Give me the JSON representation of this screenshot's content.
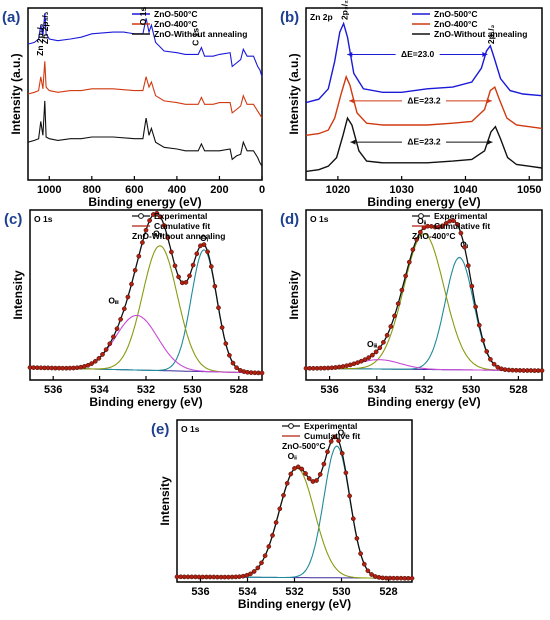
{
  "chart_data": [
    {
      "id": "a",
      "type": "line",
      "panel_label": "(a)",
      "xlabel": "Binding energy (eV)",
      "ylabel": "Intensity (a.u.)",
      "xlim": [
        1100,
        0
      ],
      "ylim": [
        0,
        10
      ],
      "xticks": [
        "1000",
        "800",
        "600",
        "400",
        "200",
        "0"
      ],
      "xtick_values": [
        1000,
        800,
        600,
        400,
        200,
        0
      ],
      "legend": {
        "placement": "top-right",
        "entries": [
          "ZnO-500°C",
          "ZnO-400°C",
          "ZnO-Without annealing"
        ]
      },
      "series": [
        {
          "name": "ZnO-500°C",
          "color": "#1a1ad8",
          "x": [
            1100,
            1070,
            1050,
            1040,
            1030,
            1021,
            1015,
            1000,
            960,
            900,
            850,
            800,
            700,
            650,
            600,
            560,
            545,
            531,
            520,
            500,
            460,
            400,
            360,
            320,
            300,
            285,
            270,
            230,
            200,
            150,
            140,
            120,
            100,
            88,
            70,
            40,
            20,
            10,
            0
          ],
          "y": [
            7.9,
            8.0,
            8.2,
            9.0,
            8.4,
            9.7,
            8.5,
            8.2,
            8.1,
            8.2,
            8.3,
            8.5,
            8.6,
            8.6,
            8.5,
            8.5,
            9.4,
            8.6,
            9.0,
            8.0,
            7.5,
            7.4,
            7.3,
            7.3,
            7.3,
            7.7,
            7.2,
            7.2,
            7.3,
            7.4,
            6.6,
            6.8,
            7.0,
            7.6,
            7.2,
            7.2,
            6.6,
            6.4,
            6.0
          ]
        },
        {
          "name": "ZnO-400°C",
          "color": "#d03a10",
          "x": [
            1100,
            1070,
            1050,
            1040,
            1030,
            1021,
            1015,
            1000,
            960,
            900,
            850,
            800,
            700,
            600,
            560,
            545,
            531,
            520,
            500,
            460,
            400,
            360,
            300,
            285,
            270,
            230,
            200,
            150,
            140,
            120,
            100,
            88,
            70,
            40,
            20,
            10,
            0
          ],
          "y": [
            5.0,
            5.1,
            5.2,
            6.0,
            5.3,
            6.9,
            5.4,
            5.2,
            5.1,
            5.2,
            5.2,
            5.3,
            5.3,
            5.2,
            5.2,
            6.0,
            5.4,
            5.7,
            4.9,
            4.6,
            4.5,
            4.4,
            4.4,
            4.8,
            4.4,
            4.4,
            4.5,
            4.5,
            3.9,
            4.1,
            4.3,
            4.9,
            4.4,
            4.4,
            4.0,
            3.8,
            3.6
          ]
        },
        {
          "name": "ZnO-Without annealing",
          "color": "#111111",
          "x": [
            1100,
            1070,
            1050,
            1040,
            1030,
            1021,
            1015,
            1000,
            960,
            900,
            850,
            800,
            700,
            600,
            560,
            545,
            531,
            520,
            500,
            460,
            400,
            360,
            300,
            285,
            270,
            230,
            200,
            150,
            140,
            120,
            100,
            88,
            70,
            40,
            20,
            10,
            0
          ],
          "y": [
            2.2,
            2.3,
            2.4,
            3.4,
            2.6,
            4.6,
            2.5,
            2.4,
            2.3,
            2.4,
            2.4,
            2.5,
            2.5,
            2.4,
            2.4,
            3.6,
            2.6,
            3.0,
            2.2,
            1.9,
            1.8,
            1.7,
            1.7,
            2.1,
            1.7,
            1.7,
            1.7,
            1.8,
            1.2,
            1.4,
            1.5,
            2.2,
            1.7,
            1.7,
            1.3,
            1.0,
            0.8
          ]
        }
      ],
      "annotations": [
        {
          "text": "Zn 2p₁/₂",
          "x": 1044,
          "y": 9.1
        },
        {
          "text": "Zn 2p₃/₂",
          "x": 1021,
          "y": 9.8
        },
        {
          "text": "O 1s",
          "x": 531,
          "y": 9.0
        },
        {
          "text": "C 1s",
          "x": 285,
          "y": 7.8
        }
      ]
    },
    {
      "id": "b",
      "type": "line",
      "panel_label": "(b)",
      "inner_title": "Zn 2p",
      "xlabel": "Binding energy (eV)",
      "ylabel": "Intensity (a.u.)",
      "xlim": [
        1015,
        1052
      ],
      "ylim": [
        0,
        10
      ],
      "xticks": [
        "1020",
        "1030",
        "1040",
        "1050"
      ],
      "xtick_values": [
        1020,
        1030,
        1040,
        1050
      ],
      "legend": {
        "placement": "top-right",
        "entries": [
          "ZnO-500°C",
          "ZnO-400°C",
          "ZnO-Without annealing"
        ]
      },
      "series": [
        {
          "name": "ZnO-500°C",
          "color": "#1a1ad8",
          "x": [
            1015,
            1017,
            1018.5,
            1019.5,
            1020.3,
            1020.9,
            1021.5,
            1022.5,
            1024,
            1027,
            1030,
            1034,
            1038,
            1041,
            1042.5,
            1043.3,
            1043.9,
            1044.5,
            1045.5,
            1047,
            1049,
            1052
          ],
          "y": [
            4.5,
            4.7,
            5.3,
            6.9,
            8.6,
            9.1,
            8.3,
            6.2,
            5.3,
            5.1,
            5.1,
            5.3,
            5.4,
            5.7,
            6.5,
            7.5,
            7.8,
            7.1,
            5.9,
            5.2,
            5.0,
            4.9
          ]
        },
        {
          "name": "ZnO-400°C",
          "color": "#d03a10",
          "x": [
            1015,
            1017,
            1018.5,
            1019.5,
            1020.5,
            1021.3,
            1021.9,
            1023,
            1024.5,
            1027,
            1030,
            1034,
            1038,
            1041,
            1043,
            1043.9,
            1044.6,
            1045.3,
            1046.5,
            1048,
            1050,
            1052
          ],
          "y": [
            2.6,
            2.7,
            2.9,
            3.6,
            5.0,
            6.0,
            5.5,
            3.9,
            3.3,
            3.2,
            3.2,
            3.2,
            3.3,
            3.4,
            4.1,
            5.2,
            5.4,
            4.7,
            3.6,
            3.2,
            3.1,
            3.0
          ]
        },
        {
          "name": "ZnO-Without annealing",
          "color": "#111111",
          "x": [
            1015,
            1017,
            1018.5,
            1019.8,
            1020.8,
            1021.5,
            1022.2,
            1023.3,
            1024.5,
            1027,
            1030,
            1034,
            1038,
            1041,
            1043,
            1044,
            1044.7,
            1045.5,
            1046.6,
            1048,
            1050,
            1052
          ],
          "y": [
            0.5,
            0.6,
            0.8,
            1.3,
            2.6,
            3.6,
            3.2,
            1.7,
            1.1,
            1.0,
            1.0,
            1.0,
            1.1,
            1.2,
            1.7,
            2.8,
            3.1,
            2.4,
            1.3,
            0.9,
            0.8,
            0.7
          ]
        }
      ],
      "annotations": [
        {
          "text": "2p₃/₂",
          "x": 1021,
          "y": 9.3
        },
        {
          "text": "2p₁/₂",
          "x": 1044,
          "y": 7.9
        },
        {
          "text": "ΔE=23.0",
          "x": 1032.5,
          "y": 7.3,
          "x1": 1021,
          "x2": 1043.9,
          "color": "#1a1ad8"
        },
        {
          "text": "ΔE=23.2",
          "x": 1033.5,
          "y": 4.6,
          "x1": 1021.3,
          "x2": 1044.6,
          "color": "#d03a10"
        },
        {
          "text": "ΔE=23.2",
          "x": 1033.5,
          "y": 2.2,
          "x1": 1021.5,
          "x2": 1044.7,
          "color": "#111111"
        }
      ]
    },
    {
      "id": "c",
      "type": "scatter",
      "panel_label": "(c)",
      "inner_title": "O 1s",
      "xlabel": "Binding energy (eV)",
      "ylabel": "Intensity",
      "xlim": [
        537,
        527
      ],
      "ylim": [
        0,
        10
      ],
      "xticks": [
        "536",
        "534",
        "532",
        "530",
        "528"
      ],
      "xtick_values": [
        536,
        534,
        532,
        530,
        528
      ],
      "legend": {
        "placement": "top-right",
        "entries": [
          "Experimental",
          "Cumulative fit",
          "ZnO-Without annealing"
        ]
      },
      "baseline": {
        "x": [
          537,
          527
        ],
        "y": [
          0.8,
          0.45
        ]
      },
      "components": [
        {
          "name": "OI",
          "label": "Oᵢ",
          "color": "#1f8a9a",
          "center": 529.5,
          "amplitude": 7.8,
          "sigma": 0.55,
          "label_x": 529.5,
          "label_y": 8.9
        },
        {
          "name": "OII",
          "label": "Oᵢᵢ",
          "color": "#8a9a10",
          "center": 531.4,
          "amplitude": 8.0,
          "sigma": 0.75,
          "label_x": 531.5,
          "label_y": 9.2
        },
        {
          "name": "OIII",
          "label": "Oᵢᵢᵢ",
          "color": "#c84bd8",
          "center": 532.4,
          "amplitude": 3.5,
          "sigma": 0.9,
          "label_x": 533.4,
          "label_y": 4.9
        }
      ],
      "experimental_color": "#b22010",
      "fit_color": "#111111"
    },
    {
      "id": "d",
      "type": "scatter",
      "panel_label": "(d)",
      "inner_title": "O 1s",
      "xlabel": "Binding energy (eV)",
      "ylabel": "Intensity",
      "xlim": [
        537,
        527
      ],
      "ylim": [
        0,
        10
      ],
      "xticks": [
        "536",
        "534",
        "532",
        "530",
        "528"
      ],
      "xtick_values": [
        536,
        534,
        532,
        530,
        528
      ],
      "legend": {
        "placement": "top-right",
        "entries": [
          "Experimental",
          "Cumulative fit",
          "ZnO-400°C"
        ]
      },
      "baseline": {
        "x": [
          537,
          527
        ],
        "y": [
          0.75,
          0.6
        ]
      },
      "components": [
        {
          "name": "OI",
          "label": "Oᵢ",
          "color": "#1f8a9a",
          "center": 530.5,
          "amplitude": 7.2,
          "sigma": 0.6,
          "label_x": 530.3,
          "label_y": 8.5
        },
        {
          "name": "OII",
          "label": "Oᵢᵢ",
          "color": "#8a9a10",
          "center": 532.0,
          "amplitude": 8.7,
          "sigma": 0.85,
          "label_x": 532.1,
          "label_y": 10.0
        },
        {
          "name": "OIII",
          "label": "Oᵢᵢᵢ",
          "color": "#c84bd8",
          "center": 533.9,
          "amplitude": 0.6,
          "sigma": 0.9,
          "label_x": 534.2,
          "label_y": 2.1
        }
      ],
      "experimental_color": "#b22010",
      "fit_color": "#111111"
    },
    {
      "id": "e",
      "type": "scatter",
      "panel_label": "(e)",
      "inner_title": "O 1s",
      "xlabel": "Binding energy (eV)",
      "ylabel": "Intensity",
      "xlim": [
        537,
        527
      ],
      "ylim": [
        0,
        10
      ],
      "xticks": [
        "536",
        "534",
        "532",
        "530",
        "528"
      ],
      "xtick_values": [
        536,
        534,
        532,
        530,
        528
      ],
      "legend": {
        "placement": "top-right",
        "entries": [
          "Experimental",
          "Cumulative fit",
          "ZnO-500°C"
        ]
      },
      "baseline": {
        "x": [
          537,
          527
        ],
        "y": [
          0.35,
          0.25
        ]
      },
      "components": [
        {
          "name": "OI",
          "label": "Oᵢ",
          "color": "#1f8a9a",
          "center": 530.2,
          "amplitude": 8.9,
          "sigma": 0.55,
          "label_x": 530.0,
          "label_y": 9.9
        },
        {
          "name": "OII",
          "label": "Oᵢᵢ",
          "color": "#8a9a10",
          "center": 531.9,
          "amplitude": 7.4,
          "sigma": 0.75,
          "label_x": 532.1,
          "label_y": 8.3
        }
      ],
      "experimental_color": "#b22010",
      "fit_color": "#111111"
    }
  ]
}
